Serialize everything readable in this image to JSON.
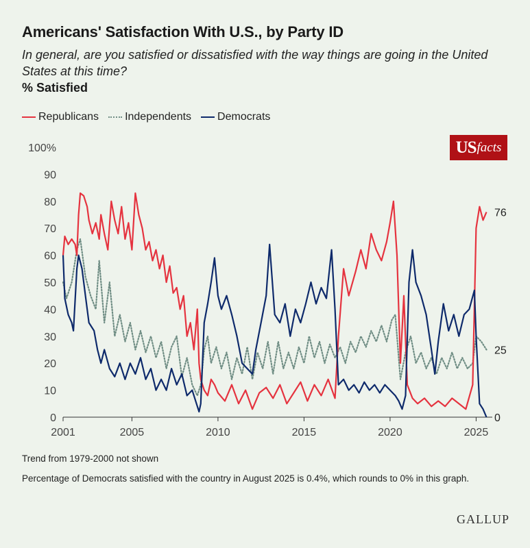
{
  "title": "Americans' Satisfaction With U.S., by Party ID",
  "subtitle": "In general, are you satisfied or dissatisfied with the way things are going in the United States at this time?",
  "measure": "% Satisfied",
  "notes": [
    "Trend from 1979-2000 not shown",
    "Percentage of Democrats satisfied with the country in August 2025 is 0.4%, which rounds to 0% in this graph."
  ],
  "logo": {
    "us": "US",
    "facts": "facts"
  },
  "source": "GALLUP",
  "colors": {
    "republicans": "#e5333f",
    "independents": "#6f8d84",
    "democrats": "#0e2a6b",
    "logo_bg": "#b01116"
  },
  "chart_data": {
    "type": "line",
    "title": "Americans' Satisfaction With U.S., by Party ID",
    "ylabel": "% Satisfied",
    "xlabel": "",
    "xlim": [
      2001,
      2025.7
    ],
    "ylim": [
      0,
      100
    ],
    "x_ticks": [
      2001,
      2005,
      2010,
      2015,
      2020,
      2025
    ],
    "y_ticks": [
      0,
      10,
      20,
      30,
      40,
      50,
      60,
      70,
      80,
      90,
      100
    ],
    "y_tick_labels": [
      "0",
      "10",
      "20",
      "30",
      "40",
      "50",
      "60",
      "70",
      "80",
      "90",
      "100%"
    ],
    "legend_position": "top-left",
    "grid": "horizontal baseline only",
    "end_labels": [
      {
        "series": "Republicans",
        "value": "76"
      },
      {
        "series": "Independents",
        "value": "25"
      },
      {
        "series": "Democrats",
        "value": "0"
      }
    ],
    "series": [
      {
        "name": "Republicans",
        "style": "solid",
        "points": [
          [
            2001.0,
            60
          ],
          [
            2001.1,
            67
          ],
          [
            2001.3,
            64
          ],
          [
            2001.5,
            66
          ],
          [
            2001.7,
            64
          ],
          [
            2001.8,
            60
          ],
          [
            2001.9,
            75
          ],
          [
            2002.0,
            83
          ],
          [
            2002.2,
            82
          ],
          [
            2002.4,
            78
          ],
          [
            2002.5,
            73
          ],
          [
            2002.7,
            68
          ],
          [
            2002.9,
            72
          ],
          [
            2003.1,
            66
          ],
          [
            2003.2,
            75
          ],
          [
            2003.4,
            68
          ],
          [
            2003.6,
            62
          ],
          [
            2003.8,
            80
          ],
          [
            2004.0,
            73
          ],
          [
            2004.2,
            68
          ],
          [
            2004.4,
            78
          ],
          [
            2004.6,
            66
          ],
          [
            2004.8,
            72
          ],
          [
            2005.0,
            62
          ],
          [
            2005.2,
            83
          ],
          [
            2005.4,
            75
          ],
          [
            2005.6,
            70
          ],
          [
            2005.8,
            62
          ],
          [
            2006.0,
            65
          ],
          [
            2006.2,
            58
          ],
          [
            2006.4,
            62
          ],
          [
            2006.6,
            55
          ],
          [
            2006.8,
            60
          ],
          [
            2007.0,
            50
          ],
          [
            2007.2,
            56
          ],
          [
            2007.4,
            46
          ],
          [
            2007.6,
            48
          ],
          [
            2007.8,
            40
          ],
          [
            2008.0,
            45
          ],
          [
            2008.2,
            30
          ],
          [
            2008.4,
            35
          ],
          [
            2008.6,
            25
          ],
          [
            2008.8,
            40
          ],
          [
            2008.9,
            20
          ],
          [
            2009.0,
            14
          ],
          [
            2009.2,
            10
          ],
          [
            2009.4,
            8
          ],
          [
            2009.6,
            14
          ],
          [
            2009.8,
            12
          ],
          [
            2010.0,
            9
          ],
          [
            2010.4,
            6
          ],
          [
            2010.8,
            12
          ],
          [
            2011.2,
            5
          ],
          [
            2011.6,
            10
          ],
          [
            2012.0,
            3
          ],
          [
            2012.4,
            9
          ],
          [
            2012.8,
            11
          ],
          [
            2013.2,
            7
          ],
          [
            2013.6,
            12
          ],
          [
            2014.0,
            5
          ],
          [
            2014.4,
            9
          ],
          [
            2014.8,
            13
          ],
          [
            2015.2,
            6
          ],
          [
            2015.6,
            12
          ],
          [
            2016.0,
            8
          ],
          [
            2016.4,
            14
          ],
          [
            2016.8,
            7
          ],
          [
            2017.0,
            30
          ],
          [
            2017.3,
            55
          ],
          [
            2017.6,
            45
          ],
          [
            2018.0,
            54
          ],
          [
            2018.3,
            62
          ],
          [
            2018.6,
            55
          ],
          [
            2018.9,
            68
          ],
          [
            2019.2,
            62
          ],
          [
            2019.5,
            58
          ],
          [
            2019.8,
            65
          ],
          [
            2020.0,
            72
          ],
          [
            2020.2,
            80
          ],
          [
            2020.4,
            60
          ],
          [
            2020.6,
            20
          ],
          [
            2020.8,
            45
          ],
          [
            2021.0,
            12
          ],
          [
            2021.3,
            7
          ],
          [
            2021.6,
            5
          ],
          [
            2022.0,
            7
          ],
          [
            2022.4,
            4
          ],
          [
            2022.8,
            6
          ],
          [
            2023.2,
            4
          ],
          [
            2023.6,
            7
          ],
          [
            2024.0,
            5
          ],
          [
            2024.4,
            3
          ],
          [
            2024.8,
            12
          ],
          [
            2025.0,
            70
          ],
          [
            2025.2,
            78
          ],
          [
            2025.4,
            73
          ],
          [
            2025.6,
            76
          ]
        ]
      },
      {
        "name": "Independents",
        "style": "dotted",
        "points": [
          [
            2001.0,
            50
          ],
          [
            2001.2,
            44
          ],
          [
            2001.5,
            50
          ],
          [
            2001.8,
            62
          ],
          [
            2002.0,
            66
          ],
          [
            2002.3,
            52
          ],
          [
            2002.6,
            45
          ],
          [
            2002.9,
            40
          ],
          [
            2003.1,
            58
          ],
          [
            2003.4,
            35
          ],
          [
            2003.7,
            50
          ],
          [
            2004.0,
            30
          ],
          [
            2004.3,
            38
          ],
          [
            2004.6,
            28
          ],
          [
            2004.9,
            35
          ],
          [
            2005.2,
            25
          ],
          [
            2005.5,
            32
          ],
          [
            2005.8,
            24
          ],
          [
            2006.1,
            30
          ],
          [
            2006.4,
            22
          ],
          [
            2006.7,
            28
          ],
          [
            2007.0,
            18
          ],
          [
            2007.3,
            26
          ],
          [
            2007.6,
            30
          ],
          [
            2007.9,
            15
          ],
          [
            2008.2,
            22
          ],
          [
            2008.5,
            12
          ],
          [
            2008.8,
            8
          ],
          [
            2009.0,
            12
          ],
          [
            2009.2,
            25
          ],
          [
            2009.4,
            30
          ],
          [
            2009.6,
            20
          ],
          [
            2009.9,
            26
          ],
          [
            2010.2,
            18
          ],
          [
            2010.5,
            24
          ],
          [
            2010.8,
            14
          ],
          [
            2011.1,
            22
          ],
          [
            2011.4,
            16
          ],
          [
            2011.7,
            26
          ],
          [
            2012.0,
            14
          ],
          [
            2012.3,
            24
          ],
          [
            2012.6,
            18
          ],
          [
            2012.9,
            28
          ],
          [
            2013.2,
            16
          ],
          [
            2013.5,
            28
          ],
          [
            2013.8,
            18
          ],
          [
            2014.1,
            24
          ],
          [
            2014.4,
            18
          ],
          [
            2014.7,
            26
          ],
          [
            2015.0,
            20
          ],
          [
            2015.3,
            30
          ],
          [
            2015.6,
            22
          ],
          [
            2015.9,
            28
          ],
          [
            2016.2,
            20
          ],
          [
            2016.5,
            27
          ],
          [
            2016.8,
            22
          ],
          [
            2017.1,
            26
          ],
          [
            2017.4,
            20
          ],
          [
            2017.7,
            28
          ],
          [
            2018.0,
            24
          ],
          [
            2018.3,
            30
          ],
          [
            2018.6,
            26
          ],
          [
            2018.9,
            32
          ],
          [
            2019.2,
            28
          ],
          [
            2019.5,
            34
          ],
          [
            2019.8,
            28
          ],
          [
            2020.1,
            36
          ],
          [
            2020.3,
            38
          ],
          [
            2020.6,
            14
          ],
          [
            2020.9,
            24
          ],
          [
            2021.2,
            30
          ],
          [
            2021.5,
            20
          ],
          [
            2021.8,
            24
          ],
          [
            2022.1,
            18
          ],
          [
            2022.4,
            22
          ],
          [
            2022.7,
            16
          ],
          [
            2023.0,
            22
          ],
          [
            2023.3,
            18
          ],
          [
            2023.6,
            24
          ],
          [
            2023.9,
            18
          ],
          [
            2024.2,
            22
          ],
          [
            2024.5,
            18
          ],
          [
            2024.8,
            20
          ],
          [
            2025.0,
            30
          ],
          [
            2025.3,
            28
          ],
          [
            2025.6,
            25
          ]
        ]
      },
      {
        "name": "Democrats",
        "style": "solid",
        "points": [
          [
            2001.0,
            60
          ],
          [
            2001.1,
            44
          ],
          [
            2001.3,
            38
          ],
          [
            2001.5,
            35
          ],
          [
            2001.6,
            32
          ],
          [
            2001.8,
            55
          ],
          [
            2001.9,
            60
          ],
          [
            2002.1,
            55
          ],
          [
            2002.3,
            45
          ],
          [
            2002.5,
            35
          ],
          [
            2002.8,
            32
          ],
          [
            2003.0,
            25
          ],
          [
            2003.2,
            20
          ],
          [
            2003.4,
            25
          ],
          [
            2003.7,
            18
          ],
          [
            2004.0,
            15
          ],
          [
            2004.3,
            20
          ],
          [
            2004.6,
            14
          ],
          [
            2004.9,
            20
          ],
          [
            2005.2,
            16
          ],
          [
            2005.5,
            22
          ],
          [
            2005.8,
            14
          ],
          [
            2006.1,
            18
          ],
          [
            2006.4,
            10
          ],
          [
            2006.7,
            14
          ],
          [
            2007.0,
            10
          ],
          [
            2007.3,
            18
          ],
          [
            2007.6,
            12
          ],
          [
            2007.9,
            16
          ],
          [
            2008.2,
            8
          ],
          [
            2008.5,
            10
          ],
          [
            2008.8,
            4
          ],
          [
            2008.9,
            2
          ],
          [
            2009.0,
            5
          ],
          [
            2009.2,
            35
          ],
          [
            2009.4,
            42
          ],
          [
            2009.6,
            50
          ],
          [
            2009.8,
            59
          ],
          [
            2010.0,
            45
          ],
          [
            2010.2,
            40
          ],
          [
            2010.5,
            45
          ],
          [
            2010.8,
            38
          ],
          [
            2011.1,
            30
          ],
          [
            2011.4,
            20
          ],
          [
            2011.7,
            18
          ],
          [
            2012.0,
            16
          ],
          [
            2012.2,
            25
          ],
          [
            2012.5,
            35
          ],
          [
            2012.8,
            45
          ],
          [
            2013.0,
            64
          ],
          [
            2013.3,
            38
          ],
          [
            2013.6,
            35
          ],
          [
            2013.9,
            42
          ],
          [
            2014.2,
            30
          ],
          [
            2014.5,
            40
          ],
          [
            2014.8,
            35
          ],
          [
            2015.1,
            42
          ],
          [
            2015.4,
            50
          ],
          [
            2015.7,
            42
          ],
          [
            2016.0,
            48
          ],
          [
            2016.3,
            44
          ],
          [
            2016.6,
            62
          ],
          [
            2016.8,
            40
          ],
          [
            2017.0,
            12
          ],
          [
            2017.3,
            14
          ],
          [
            2017.6,
            10
          ],
          [
            2017.9,
            12
          ],
          [
            2018.2,
            9
          ],
          [
            2018.5,
            13
          ],
          [
            2018.8,
            10
          ],
          [
            2019.1,
            12
          ],
          [
            2019.4,
            9
          ],
          [
            2019.7,
            12
          ],
          [
            2020.0,
            10
          ],
          [
            2020.3,
            8
          ],
          [
            2020.5,
            6
          ],
          [
            2020.7,
            3
          ],
          [
            2020.9,
            8
          ],
          [
            2021.1,
            50
          ],
          [
            2021.3,
            62
          ],
          [
            2021.5,
            50
          ],
          [
            2021.8,
            45
          ],
          [
            2022.1,
            38
          ],
          [
            2022.4,
            25
          ],
          [
            2022.6,
            16
          ],
          [
            2022.8,
            28
          ],
          [
            2023.1,
            42
          ],
          [
            2023.4,
            32
          ],
          [
            2023.7,
            38
          ],
          [
            2024.0,
            30
          ],
          [
            2024.3,
            38
          ],
          [
            2024.6,
            40
          ],
          [
            2024.9,
            47
          ],
          [
            2025.0,
            30
          ],
          [
            2025.2,
            5
          ],
          [
            2025.4,
            3
          ],
          [
            2025.6,
            0
          ]
        ]
      }
    ]
  }
}
